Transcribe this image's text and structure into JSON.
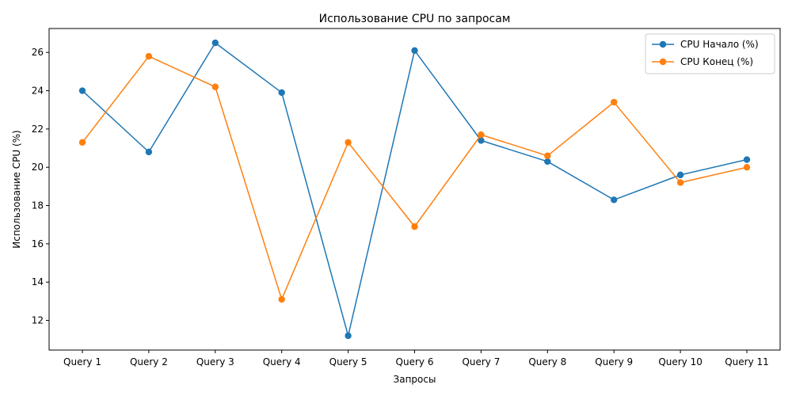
{
  "chart_data": {
    "type": "line",
    "title": "Использование CPU по запросам",
    "xlabel": "Запросы",
    "ylabel": "Использование CPU (%)",
    "categories": [
      "Query 1",
      "Query 2",
      "Query 3",
      "Query 4",
      "Query 5",
      "Query 6",
      "Query 7",
      "Query 8",
      "Query 9",
      "Query 10",
      "Query 11"
    ],
    "ylim": [
      10.45,
      27.25
    ],
    "yticks": [
      12,
      14,
      16,
      18,
      20,
      22,
      24,
      26
    ],
    "grid": false,
    "legend_position": "top-right",
    "series": [
      {
        "name": "CPU Начало (%)",
        "color": "#1f77b4",
        "values": [
          24.0,
          20.8,
          26.5,
          23.9,
          11.2,
          26.1,
          21.4,
          20.3,
          18.3,
          19.6,
          20.4
        ]
      },
      {
        "name": "CPU Конец (%)",
        "color": "#ff7f0e",
        "values": [
          21.3,
          25.8,
          24.2,
          13.1,
          21.3,
          16.9,
          21.7,
          20.6,
          23.4,
          19.2,
          20.0
        ]
      }
    ]
  }
}
